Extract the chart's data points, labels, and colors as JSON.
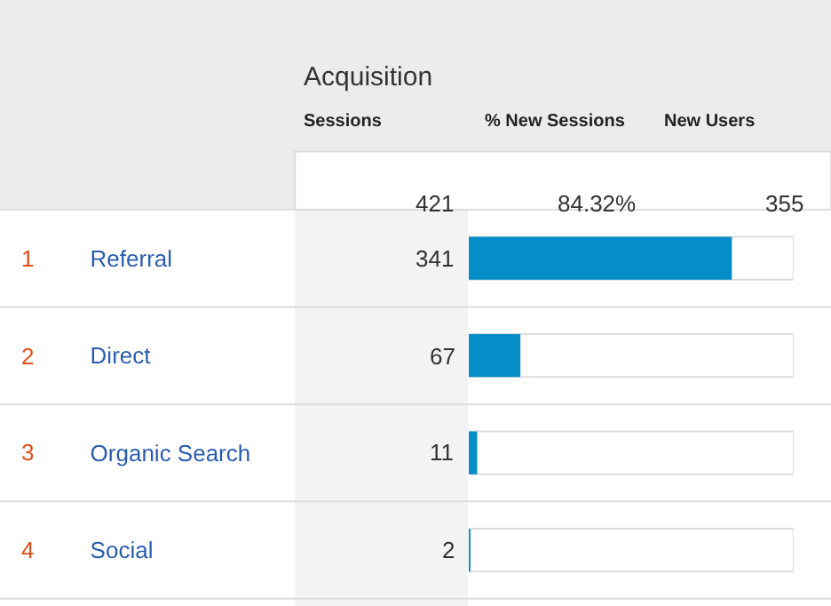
{
  "chart_data": {
    "type": "bar",
    "orientation": "horizontal",
    "categories": [
      "Referral",
      "Direct",
      "Organic Search",
      "Social"
    ],
    "values": [
      341,
      67,
      11,
      2
    ],
    "color": "#058dc7",
    "xlim": [
      0,
      421
    ],
    "tick_labels": "y",
    "grid": false,
    "legend": false,
    "data_labels": true,
    "annotations": [
      "Acquisition",
      "Sessions",
      "% New Sessions",
      "New Users",
      "421",
      "84.32%",
      "355",
      "1",
      "2",
      "3",
      "4"
    ]
  }
}
